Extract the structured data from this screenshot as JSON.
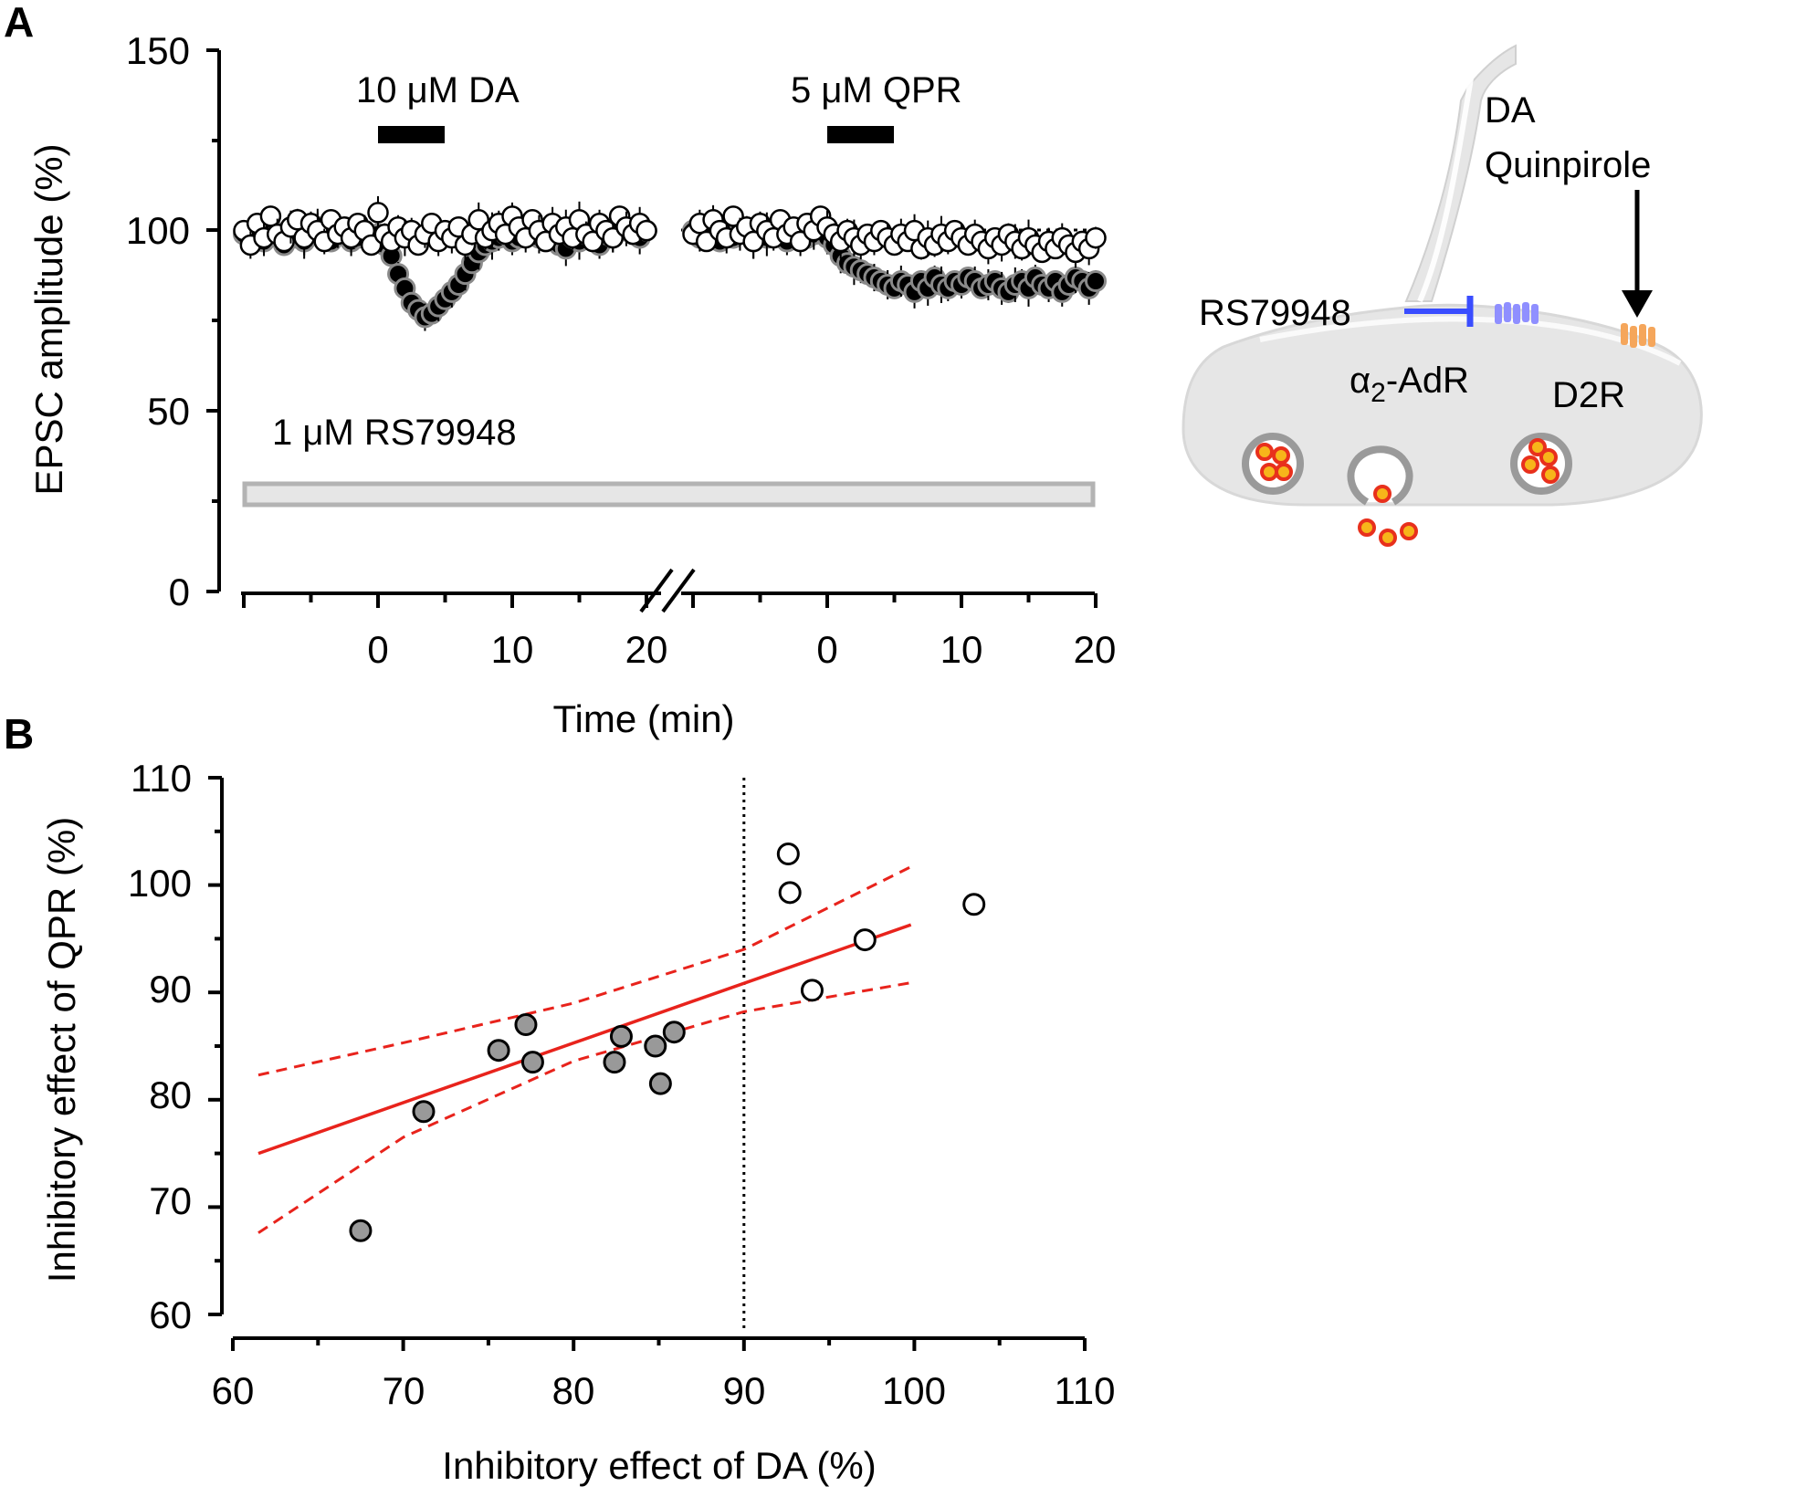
{
  "panels": {
    "a": {
      "letter": "A"
    },
    "b": {
      "letter": "B"
    }
  },
  "chart_data": [
    {
      "panel": "A",
      "type": "scatter",
      "ylabel": "EPSC amplitude (%)",
      "xlabel": "Time (min)",
      "ylim": [
        0,
        150
      ],
      "yticks": [
        0,
        50,
        100,
        150
      ],
      "xticks_seg1": [
        0,
        10,
        20
      ],
      "xticks_seg2": [
        0,
        10,
        20
      ],
      "x_break": true,
      "baseline": 100,
      "drug_labels": {
        "da": "10 μM DA",
        "qpr": "5 μM QPR",
        "rs": "1 μM RS79948"
      },
      "drug_periods": {
        "da": [
          0,
          5
        ],
        "qpr": [
          0,
          5
        ]
      },
      "series": [
        {
          "marker": "filled",
          "segment1": {
            "x": [
              -10,
              -9.5,
              -9,
              -8.5,
              -8,
              -7.5,
              -7,
              -6.5,
              -6,
              -5.5,
              -5,
              -4.5,
              -4,
              -3.5,
              -3,
              -2.5,
              -2,
              -1.5,
              -1,
              -0.5,
              0,
              0.5,
              1,
              1.5,
              2,
              2.5,
              3,
              3.5,
              4,
              4.5,
              5,
              5.5,
              6,
              6.5,
              7,
              7.5,
              8,
              8.5,
              9,
              9.5,
              10,
              10.5,
              11,
              11.5,
              12,
              12.5,
              13,
              13.5,
              14,
              14.5,
              15,
              15.5,
              16,
              16.5,
              17,
              17.5,
              18,
              18.5,
              19,
              19.5,
              20
            ],
            "y": [
              99,
              100,
              98,
              97,
              101,
              99,
              96,
              100,
              98,
              97,
              99,
              101,
              98,
              97,
              100,
              99,
              97,
              98,
              100,
              98,
              99,
              96,
              93,
              88,
              84,
              80,
              78,
              76,
              77,
              79,
              81,
              83,
              85,
              88,
              91,
              94,
              96,
              97,
              98,
              99,
              97,
              98,
              99,
              100,
              98,
              97,
              99,
              96,
              95,
              98,
              97,
              99,
              98,
              96,
              99,
              98,
              101,
              100,
              99,
              98,
              100
            ]
          },
          "segment2": {
            "x": [
              -10,
              -9.5,
              -9,
              -8.5,
              -8,
              -7.5,
              -7,
              -6.5,
              -6,
              -5.5,
              -5,
              -4.5,
              -4,
              -3.5,
              -3,
              -2.5,
              -2,
              -1.5,
              -1,
              -0.5,
              0,
              0.5,
              1,
              1.5,
              2,
              2.5,
              3,
              3.5,
              4,
              4.5,
              5,
              5.5,
              6,
              6.5,
              7,
              7.5,
              8,
              8.5,
              9,
              9.5,
              10,
              10.5,
              11,
              11.5,
              12,
              12.5,
              13,
              13.5,
              14,
              14.5,
              15,
              15.5,
              16,
              16.5,
              17,
              17.5,
              18,
              18.5,
              19,
              19.5,
              20
            ],
            "y": [
              100,
              98,
              101,
              99,
              97,
              100,
              98,
              101,
              99,
              97,
              100,
              98,
              99,
              101,
              97,
              99,
              100,
              98,
              99,
              101,
              98,
              96,
              93,
              91,
              90,
              89,
              88,
              87,
              86,
              85,
              84,
              86,
              85,
              83,
              86,
              84,
              87,
              85,
              84,
              86,
              85,
              87,
              86,
              84,
              85,
              86,
              84,
              83,
              85,
              86,
              84,
              87,
              85,
              84,
              86,
              83,
              85,
              87,
              86,
              84,
              86
            ]
          }
        },
        {
          "marker": "open",
          "segment1": {
            "x": [
              -10,
              -9.5,
              -9,
              -8.5,
              -8,
              -7.5,
              -7,
              -6.5,
              -6,
              -5.5,
              -5,
              -4.5,
              -4,
              -3.5,
              -3,
              -2.5,
              -2,
              -1.5,
              -1,
              -0.5,
              0,
              0.5,
              1,
              1.5,
              2,
              2.5,
              3,
              3.5,
              4,
              4.5,
              5,
              5.5,
              6,
              6.5,
              7,
              7.5,
              8,
              8.5,
              9,
              9.5,
              10,
              10.5,
              11,
              11.5,
              12,
              12.5,
              13,
              13.5,
              14,
              14.5,
              15,
              15.5,
              16,
              16.5,
              17,
              17.5,
              18,
              18.5,
              19,
              19.5,
              20
            ],
            "y": [
              100,
              96,
              102,
              98,
              104,
              99,
              97,
              101,
              103,
              98,
              102,
              100,
              97,
              103,
              99,
              101,
              98,
              102,
              100,
              96,
              105,
              99,
              97,
              101,
              98,
              100,
              96,
              99,
              102,
              97,
              100,
              98,
              101,
              96,
              99,
              103,
              98,
              100,
              102,
              99,
              104,
              101,
              98,
              103,
              100,
              97,
              102,
              99,
              101,
              98,
              103,
              99,
              97,
              102,
              100,
              98,
              104,
              101,
              99,
              102,
              100
            ]
          },
          "segment2": {
            "x": [
              -10,
              -9.5,
              -9,
              -8.5,
              -8,
              -7.5,
              -7,
              -6.5,
              -6,
              -5.5,
              -5,
              -4.5,
              -4,
              -3.5,
              -3,
              -2.5,
              -2,
              -1.5,
              -1,
              -0.5,
              0,
              0.5,
              1,
              1.5,
              2,
              2.5,
              3,
              3.5,
              4,
              4.5,
              5,
              5.5,
              6,
              6.5,
              7,
              7.5,
              8,
              8.5,
              9,
              9.5,
              10,
              10.5,
              11,
              11.5,
              12,
              12.5,
              13,
              13.5,
              14,
              14.5,
              15,
              15.5,
              16,
              16.5,
              17,
              17.5,
              18,
              18.5,
              19,
              19.5,
              20
            ],
            "y": [
              99,
              102,
              97,
              103,
              100,
              98,
              104,
              99,
              101,
              97,
              102,
              100,
              98,
              103,
              99,
              101,
              97,
              102,
              100,
              104,
              101,
              99,
              97,
              100,
              98,
              96,
              99,
              97,
              100,
              98,
              96,
              99,
              97,
              100,
              95,
              98,
              96,
              99,
              97,
              100,
              98,
              96,
              99,
              97,
              95,
              98,
              96,
              99,
              97,
              95,
              98,
              96,
              94,
              97,
              95,
              98,
              96,
              94,
              97,
              95,
              98
            ]
          }
        }
      ]
    },
    {
      "panel": "B",
      "type": "scatter",
      "xlabel": "Inhibitory effect of DA (%)",
      "ylabel": "Inhibitory effect of QPR (%)",
      "xlim": [
        60,
        110
      ],
      "ylim": [
        60,
        110
      ],
      "xticks": [
        60,
        70,
        80,
        90,
        100,
        110
      ],
      "yticks": [
        60,
        70,
        80,
        90,
        100,
        110
      ],
      "threshold_x": 90,
      "series": [
        {
          "marker": "gray",
          "x": [
            67.5,
            71.2,
            75.6,
            77.2,
            77.6,
            82.4,
            82.8,
            84.8,
            85.1,
            85.9
          ],
          "y": [
            67.8,
            78.9,
            84.6,
            87.0,
            83.5,
            83.5,
            85.9,
            85.0,
            81.5,
            86.3
          ]
        },
        {
          "marker": "open",
          "x": [
            92.6,
            92.7,
            94.0,
            97.1,
            103.5
          ],
          "y": [
            102.9,
            99.3,
            90.2,
            94.9,
            98.2
          ]
        }
      ],
      "regression": {
        "line": {
          "x": [
            61.5,
            99.8
          ],
          "y": [
            75.0,
            96.3
          ]
        },
        "ci_upper": {
          "x": [
            61.5,
            70,
            80,
            90,
            99.8
          ],
          "y": [
            82.3,
            85.3,
            89.0,
            94.0,
            101.7
          ]
        },
        "ci_lower": {
          "x": [
            61.5,
            70,
            80,
            90,
            99.8
          ],
          "y": [
            67.6,
            76.5,
            83.6,
            88.2,
            90.9
          ]
        }
      }
    }
  ],
  "diagram": {
    "labels": {
      "da": "DA",
      "quinpirole": "Quinpirole",
      "rs79948": "RS79948",
      "alpha2_prefix": "α",
      "alpha2_sub": "2",
      "alpha2_suffix": "-AdR",
      "d2r": "D2R"
    },
    "colors": {
      "terminal": "#e6e6e6",
      "antagonist": "#3a4dff",
      "alpha2_receptor": "#8f8fff",
      "d2_receptor": "#f5a65b",
      "vesicle_content": "#e8301c",
      "vesicle_fill": "#f7b51a"
    }
  }
}
